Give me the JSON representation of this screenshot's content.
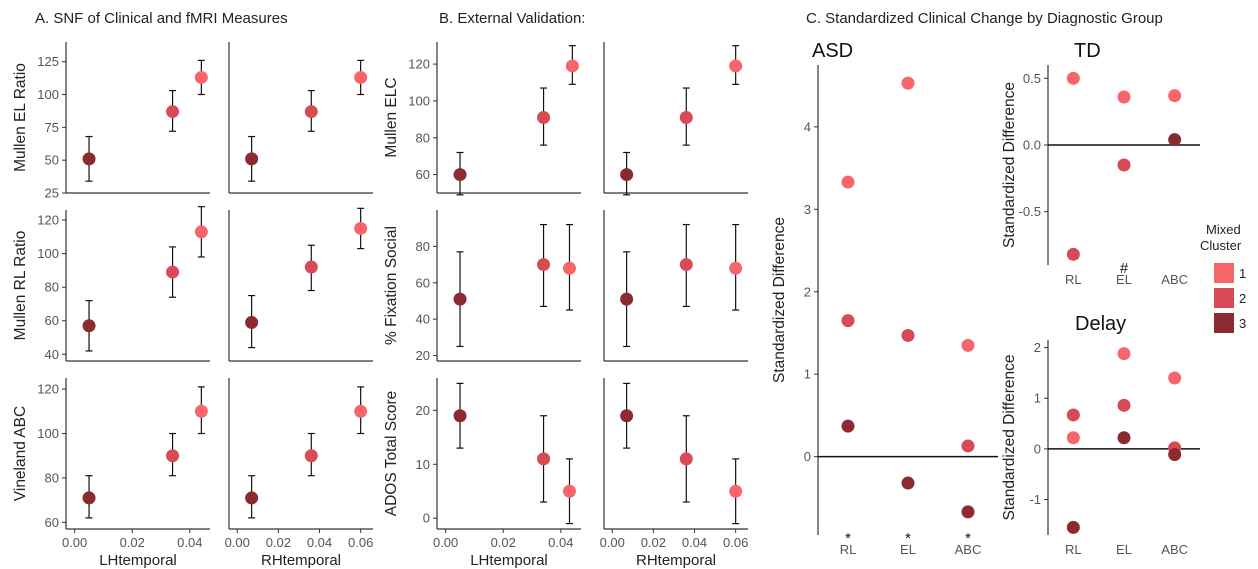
{
  "colors": {
    "cluster1": "#f8666c",
    "cluster2": "#d84a55",
    "cluster3": "#8b2b30",
    "axis": "#333333",
    "text": "#222222"
  },
  "panels": {
    "A": {
      "title": "A. SNF of Clinical and fMRI Measures"
    },
    "B": {
      "title": "B. External Validation:"
    },
    "C": {
      "title": "C. Standardized Clinical Change by Diagnostic Group"
    }
  },
  "legend": {
    "title_line1": "Mixed",
    "title_line2": "Cluster",
    "items": [
      "1",
      "2",
      "3"
    ]
  },
  "chart_data": [
    {
      "type": "scatter",
      "title": "",
      "xlabel": "",
      "ylabel": "Mullen EL Ratio",
      "xlim": [
        -0.003,
        0.047
      ],
      "ylim": [
        25,
        140
      ],
      "yticks": [
        25,
        50,
        75,
        100,
        125
      ],
      "xticks": [],
      "points": [
        {
          "x": 0.005,
          "y": 51,
          "lo": 34,
          "hi": 68,
          "cluster": 3
        },
        {
          "x": 0.034,
          "y": 87,
          "lo": 72,
          "hi": 103,
          "cluster": 2
        },
        {
          "x": 0.044,
          "y": 113,
          "lo": 100,
          "hi": 126,
          "cluster": 1
        }
      ]
    },
    {
      "type": "scatter",
      "title": "",
      "xlabel": "",
      "ylabel": "",
      "xlim": [
        -0.004,
        0.066
      ],
      "ylim": [
        25,
        140
      ],
      "yticks": [],
      "xticks": [],
      "points": [
        {
          "x": 0.007,
          "y": 51,
          "lo": 34,
          "hi": 68,
          "cluster": 3
        },
        {
          "x": 0.036,
          "y": 87,
          "lo": 72,
          "hi": 103,
          "cluster": 2
        },
        {
          "x": 0.06,
          "y": 113,
          "lo": 100,
          "hi": 126,
          "cluster": 1
        }
      ]
    },
    {
      "type": "scatter",
      "title": "",
      "xlabel": "",
      "ylabel": "Mullen RL Ratio",
      "xlim": [
        -0.003,
        0.047
      ],
      "ylim": [
        36,
        126
      ],
      "yticks": [
        40,
        60,
        80,
        100,
        120
      ],
      "xticks": [],
      "points": [
        {
          "x": 0.005,
          "y": 57,
          "lo": 42,
          "hi": 72,
          "cluster": 3
        },
        {
          "x": 0.034,
          "y": 89,
          "lo": 74,
          "hi": 104,
          "cluster": 2
        },
        {
          "x": 0.044,
          "y": 113,
          "lo": 98,
          "hi": 128,
          "cluster": 1
        }
      ]
    },
    {
      "type": "scatter",
      "title": "",
      "xlabel": "",
      "ylabel": "",
      "xlim": [
        -0.004,
        0.066
      ],
      "ylim": [
        36,
        126
      ],
      "yticks": [],
      "xticks": [],
      "points": [
        {
          "x": 0.007,
          "y": 59,
          "lo": 44,
          "hi": 75,
          "cluster": 3
        },
        {
          "x": 0.036,
          "y": 92,
          "lo": 78,
          "hi": 105,
          "cluster": 2
        },
        {
          "x": 0.06,
          "y": 115,
          "lo": 103,
          "hi": 127,
          "cluster": 1
        }
      ]
    },
    {
      "type": "scatter",
      "title": "",
      "xlabel": "LHtemporal",
      "ylabel": "Vineland ABC",
      "xlim": [
        -0.003,
        0.047
      ],
      "ylim": [
        57,
        125
      ],
      "yticks": [
        60,
        80,
        100,
        120
      ],
      "xticks": [
        0.0,
        0.02,
        0.04
      ],
      "xticklabels": [
        "0.00",
        "0.02",
        "0.04"
      ],
      "points": [
        {
          "x": 0.005,
          "y": 71,
          "lo": 62,
          "hi": 81,
          "cluster": 3
        },
        {
          "x": 0.034,
          "y": 90,
          "lo": 81,
          "hi": 100,
          "cluster": 2
        },
        {
          "x": 0.044,
          "y": 110,
          "lo": 100,
          "hi": 121,
          "cluster": 1
        }
      ]
    },
    {
      "type": "scatter",
      "title": "",
      "xlabel": "RHtemporal",
      "ylabel": "",
      "xlim": [
        -0.004,
        0.066
      ],
      "ylim": [
        57,
        125
      ],
      "yticks": [],
      "xticks": [
        0.0,
        0.02,
        0.04,
        0.06
      ],
      "xticklabels": [
        "0.00",
        "0.02",
        "0.04",
        "0.06"
      ],
      "points": [
        {
          "x": 0.007,
          "y": 71,
          "lo": 62,
          "hi": 81,
          "cluster": 3
        },
        {
          "x": 0.036,
          "y": 90,
          "lo": 81,
          "hi": 100,
          "cluster": 2
        },
        {
          "x": 0.06,
          "y": 110,
          "lo": 100,
          "hi": 121,
          "cluster": 1
        }
      ]
    },
    {
      "type": "scatter",
      "title": "",
      "xlabel": "",
      "ylabel": "Mullen ELC",
      "xlim": [
        -0.003,
        0.047
      ],
      "ylim": [
        50,
        132
      ],
      "yticks": [
        60,
        80,
        100,
        120
      ],
      "xticks": [],
      "points": [
        {
          "x": 0.005,
          "y": 60,
          "lo": 49,
          "hi": 72,
          "cluster": 3
        },
        {
          "x": 0.034,
          "y": 91,
          "lo": 76,
          "hi": 107,
          "cluster": 2
        },
        {
          "x": 0.044,
          "y": 119,
          "lo": 109,
          "hi": 130,
          "cluster": 1
        }
      ]
    },
    {
      "type": "scatter",
      "title": "",
      "xlabel": "",
      "ylabel": "",
      "xlim": [
        -0.004,
        0.066
      ],
      "ylim": [
        50,
        132
      ],
      "yticks": [],
      "xticks": [],
      "points": [
        {
          "x": 0.007,
          "y": 60,
          "lo": 49,
          "hi": 72,
          "cluster": 3
        },
        {
          "x": 0.036,
          "y": 91,
          "lo": 76,
          "hi": 107,
          "cluster": 2
        },
        {
          "x": 0.06,
          "y": 119,
          "lo": 109,
          "hi": 130,
          "cluster": 1
        }
      ]
    },
    {
      "type": "scatter",
      "title": "",
      "xlabel": "",
      "ylabel": "% Fixation Social",
      "xlim": [
        -0.003,
        0.047
      ],
      "ylim": [
        17,
        100
      ],
      "yticks": [
        20,
        40,
        60,
        80
      ],
      "xticks": [],
      "points": [
        {
          "x": 0.005,
          "y": 51,
          "lo": 25,
          "hi": 77,
          "cluster": 3
        },
        {
          "x": 0.034,
          "y": 70,
          "lo": 47,
          "hi": 92,
          "cluster": 2
        },
        {
          "x": 0.043,
          "y": 68,
          "lo": 45,
          "hi": 92,
          "cluster": 1
        }
      ]
    },
    {
      "type": "scatter",
      "title": "",
      "xlabel": "",
      "ylabel": "",
      "xlim": [
        -0.004,
        0.066
      ],
      "ylim": [
        17,
        100
      ],
      "yticks": [],
      "xticks": [],
      "points": [
        {
          "x": 0.007,
          "y": 51,
          "lo": 25,
          "hi": 77,
          "cluster": 3
        },
        {
          "x": 0.036,
          "y": 70,
          "lo": 47,
          "hi": 92,
          "cluster": 2
        },
        {
          "x": 0.06,
          "y": 68,
          "lo": 45,
          "hi": 92,
          "cluster": 1
        }
      ]
    },
    {
      "type": "scatter",
      "title": "",
      "xlabel": "LHtemporal",
      "ylabel": "ADOS Total Score",
      "xlim": [
        -0.003,
        0.047
      ],
      "ylim": [
        -2,
        26
      ],
      "yticks": [
        0,
        10,
        20
      ],
      "xticks": [
        0.0,
        0.02,
        0.04
      ],
      "xticklabels": [
        "0.00",
        "0.02",
        "0.04"
      ],
      "points": [
        {
          "x": 0.005,
          "y": 19,
          "lo": 13,
          "hi": 25,
          "cluster": 3
        },
        {
          "x": 0.034,
          "y": 11,
          "lo": 3,
          "hi": 19,
          "cluster": 2
        },
        {
          "x": 0.043,
          "y": 5,
          "lo": -1,
          "hi": 11,
          "cluster": 1
        }
      ]
    },
    {
      "type": "scatter",
      "title": "",
      "xlabel": "RHtemporal",
      "ylabel": "",
      "xlim": [
        -0.004,
        0.066
      ],
      "ylim": [
        -2,
        26
      ],
      "yticks": [],
      "xticks": [
        0.0,
        0.02,
        0.04,
        0.06
      ],
      "xticklabels": [
        "0.00",
        "0.02",
        "0.04",
        "0.06"
      ],
      "points": [
        {
          "x": 0.007,
          "y": 19,
          "lo": 13,
          "hi": 25,
          "cluster": 3
        },
        {
          "x": 0.036,
          "y": 11,
          "lo": 3,
          "hi": 19,
          "cluster": 2
        },
        {
          "x": 0.06,
          "y": 5,
          "lo": -1,
          "hi": 11,
          "cluster": 1
        }
      ]
    },
    {
      "type": "scatter",
      "title": "ASD",
      "xlabel": "",
      "ylabel": "Standardized Difference",
      "categories": [
        "RL",
        "EL",
        "ABC"
      ],
      "xmarks": [
        "*",
        "*",
        "*"
      ],
      "ylim": [
        -0.95,
        4.75
      ],
      "yticks": [
        0,
        1,
        2,
        3,
        4
      ],
      "points": [
        {
          "cat": 0,
          "y": 3.33,
          "cluster": 1
        },
        {
          "cat": 0,
          "y": 1.65,
          "cluster": 2
        },
        {
          "cat": 0,
          "y": 0.37,
          "cluster": 3
        },
        {
          "cat": 1,
          "y": 4.53,
          "cluster": 1
        },
        {
          "cat": 1,
          "y": 1.47,
          "cluster": 2
        },
        {
          "cat": 1,
          "y": -0.32,
          "cluster": 3
        },
        {
          "cat": 2,
          "y": 1.35,
          "cluster": 1
        },
        {
          "cat": 2,
          "y": 0.13,
          "cluster": 2
        },
        {
          "cat": 2,
          "y": -0.67,
          "cluster": 3
        }
      ]
    },
    {
      "type": "scatter",
      "title": "TD",
      "xlabel": "",
      "ylabel": "Standardized Difference",
      "categories": [
        "RL",
        "EL",
        "ABC"
      ],
      "xmarks": [
        "",
        "#",
        ""
      ],
      "ylim": [
        -0.9,
        0.6
      ],
      "yticks": [
        -0.5,
        0.0,
        0.5
      ],
      "yticklabels": [
        "-0.5",
        "0.0",
        "0.5"
      ],
      "points": [
        {
          "cat": 0,
          "y": 0.5,
          "cluster": 1
        },
        {
          "cat": 0,
          "y": -0.82,
          "cluster": 2
        },
        {
          "cat": 1,
          "y": 0.36,
          "cluster": 1
        },
        {
          "cat": 1,
          "y": -0.15,
          "cluster": 2
        },
        {
          "cat": 2,
          "y": 0.37,
          "cluster": 1
        },
        {
          "cat": 2,
          "y": 0.04,
          "cluster": 3
        }
      ]
    },
    {
      "type": "scatter",
      "title": "Delay",
      "xlabel": "",
      "ylabel": "Standardized Difference",
      "categories": [
        "RL",
        "EL",
        "ABC"
      ],
      "xmarks": [
        "",
        "",
        ""
      ],
      "ylim": [
        -1.7,
        2.15
      ],
      "yticks": [
        -1,
        0,
        1,
        2
      ],
      "points": [
        {
          "cat": 0,
          "y": 0.22,
          "cluster": 1
        },
        {
          "cat": 0,
          "y": 0.67,
          "cluster": 2
        },
        {
          "cat": 0,
          "y": -1.55,
          "cluster": 3
        },
        {
          "cat": 1,
          "y": 1.88,
          "cluster": 1
        },
        {
          "cat": 1,
          "y": 0.86,
          "cluster": 2
        },
        {
          "cat": 1,
          "y": 0.22,
          "cluster": 3
        },
        {
          "cat": 2,
          "y": 1.4,
          "cluster": 1
        },
        {
          "cat": 2,
          "y": 0.02,
          "cluster": 2
        },
        {
          "cat": 2,
          "y": -0.11,
          "cluster": 3
        }
      ]
    }
  ]
}
